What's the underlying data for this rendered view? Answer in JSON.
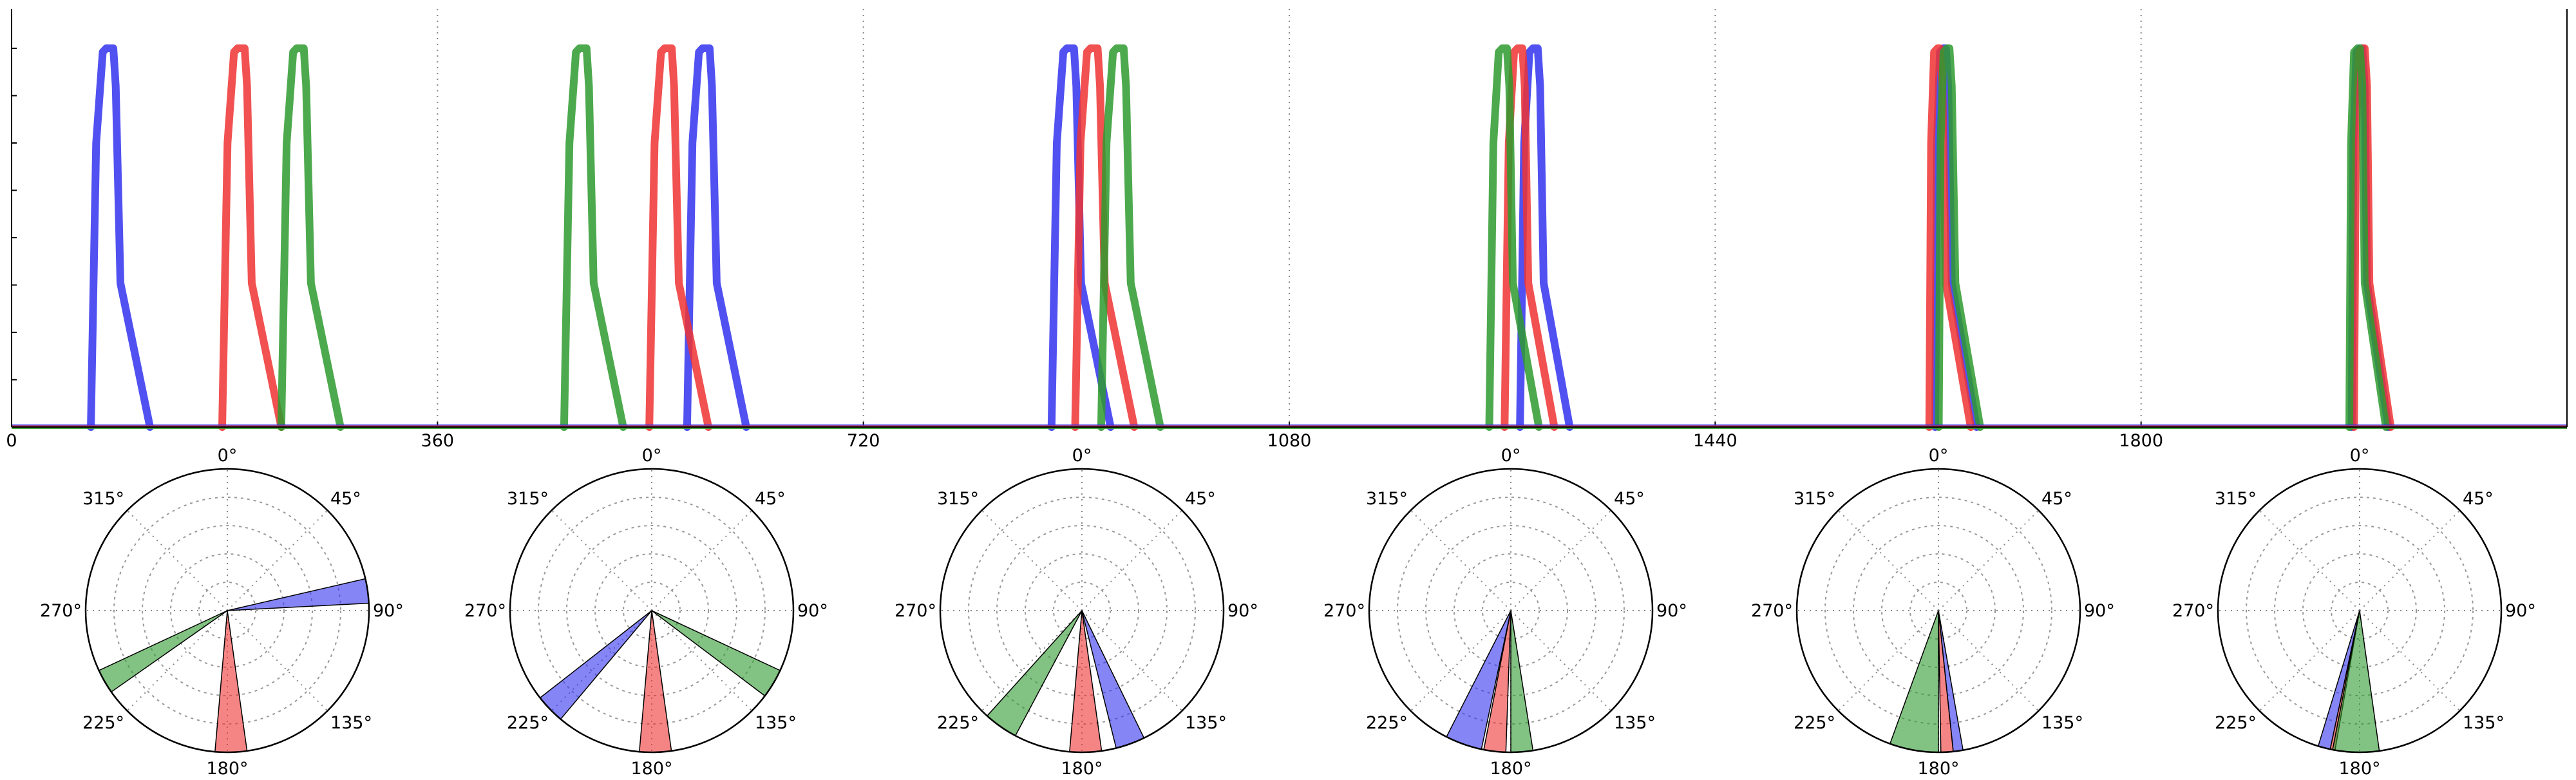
{
  "colors": {
    "blue": "#3333ee",
    "red": "#ee3333",
    "green": "#2e9a2e"
  },
  "chart_data": [
    {
      "type": "line",
      "title": "",
      "xlabel": "",
      "ylabel": "",
      "xlim": [
        0,
        2160
      ],
      "ylim": [
        0,
        1
      ],
      "x_tick_labels": [
        "0",
        "360",
        "720",
        "1080",
        "1440",
        "1800"
      ],
      "x_ticks": [
        0,
        360,
        720,
        1080,
        1440,
        1800
      ],
      "vertical_gridlines_at": [
        360,
        720,
        1080,
        1440,
        1800
      ],
      "y_ticks": [
        0.125,
        0.25,
        0.375,
        0.5,
        0.625,
        0.75,
        0.875,
        1.0
      ],
      "grid": "vertical dotted",
      "series": [
        {
          "color": "blue",
          "pulses": [
            {
              "start": 67,
              "rise_end": 80,
              "fall_start": 88,
              "knee_x": 92,
              "knee_y": 0.38,
              "end": 117
            },
            {
              "start": 571,
              "rise_end": 584,
              "fall_start": 592,
              "knee_x": 596,
              "knee_y": 0.38,
              "end": 621
            },
            {
              "start": 879,
              "rise_end": 892,
              "fall_start": 900,
              "knee_x": 904,
              "knee_y": 0.38,
              "end": 929
            },
            {
              "start": 1275,
              "rise_end": 1286,
              "fall_start": 1292,
              "knee_x": 1295,
              "knee_y": 0.38,
              "end": 1317
            },
            {
              "start": 1626,
              "rise_end": 1633,
              "fall_start": 1637,
              "knee_x": 1640,
              "knee_y": 0.38,
              "end": 1661
            },
            {
              "start": 1978,
              "rise_end": 1985,
              "fall_start": 1989,
              "knee_x": 1991,
              "knee_y": 0.38,
              "end": 2009
            }
          ]
        },
        {
          "color": "red",
          "pulses": [
            {
              "start": 178,
              "rise_end": 191,
              "fall_start": 199,
              "knee_x": 203,
              "knee_y": 0.38,
              "end": 228
            },
            {
              "start": 539,
              "rise_end": 552,
              "fall_start": 560,
              "knee_x": 564,
              "knee_y": 0.38,
              "end": 589
            },
            {
              "start": 899,
              "rise_end": 912,
              "fall_start": 920,
              "knee_x": 924,
              "knee_y": 0.38,
              "end": 949
            },
            {
              "start": 1262,
              "rise_end": 1273,
              "fall_start": 1279,
              "knee_x": 1282,
              "knee_y": 0.38,
              "end": 1304
            },
            {
              "start": 1621,
              "rise_end": 1628,
              "fall_start": 1632,
              "knee_x": 1635,
              "knee_y": 0.38,
              "end": 1656
            },
            {
              "start": 1980,
              "rise_end": 1987,
              "fall_start": 1991,
              "knee_x": 1993,
              "knee_y": 0.38,
              "end": 2011
            }
          ]
        },
        {
          "color": "green",
          "pulses": [
            {
              "start": 228,
              "rise_end": 241,
              "fall_start": 249,
              "knee_x": 253,
              "knee_y": 0.38,
              "end": 278
            },
            {
              "start": 467,
              "rise_end": 480,
              "fall_start": 488,
              "knee_x": 492,
              "knee_y": 0.38,
              "end": 517
            },
            {
              "start": 921,
              "rise_end": 934,
              "fall_start": 942,
              "knee_x": 946,
              "knee_y": 0.38,
              "end": 971
            },
            {
              "start": 1249,
              "rise_end": 1260,
              "fall_start": 1266,
              "knee_x": 1269,
              "knee_y": 0.38,
              "end": 1291
            },
            {
              "start": 1629,
              "rise_end": 1636,
              "fall_start": 1640,
              "knee_x": 1643,
              "knee_y": 0.38,
              "end": 1664
            },
            {
              "start": 1976,
              "rise_end": 1983,
              "fall_start": 1987,
              "knee_x": 1989,
              "knee_y": 0.38,
              "end": 2007
            }
          ]
        }
      ]
    },
    {
      "type": "polar",
      "title": "",
      "angle_labels": [
        "0°",
        "45°",
        "90°",
        "135°",
        "180°",
        "225°",
        "270°",
        "315°"
      ],
      "angle_label_degrees": [
        0,
        45,
        90,
        135,
        180,
        225,
        270,
        315
      ],
      "radial_gridlines": [
        0.2,
        0.4,
        0.6,
        0.8
      ],
      "theta_direction": "clockwise",
      "theta_zero": "top",
      "grid": "dotted",
      "panels": [
        {
          "wedges": [
            {
              "color": "blue",
              "from_deg": 77,
              "to_deg": 87
            },
            {
              "color": "red",
              "from_deg": 172,
              "to_deg": 185
            },
            {
              "color": "green",
              "from_deg": 235,
              "to_deg": 245
            }
          ]
        },
        {
          "wedges": [
            {
              "color": "green",
              "from_deg": 115,
              "to_deg": 127
            },
            {
              "color": "red",
              "from_deg": 172,
              "to_deg": 185
            },
            {
              "color": "blue",
              "from_deg": 220,
              "to_deg": 232
            }
          ]
        },
        {
          "wedges": [
            {
              "color": "blue",
              "from_deg": 154,
              "to_deg": 166
            },
            {
              "color": "red",
              "from_deg": 172,
              "to_deg": 185
            },
            {
              "color": "green",
              "from_deg": 208,
              "to_deg": 222
            }
          ]
        },
        {
          "wedges": [
            {
              "color": "green",
              "from_deg": 171,
              "to_deg": 180
            },
            {
              "color": "red",
              "from_deg": 182,
              "to_deg": 191
            },
            {
              "color": "blue",
              "from_deg": 192,
              "to_deg": 207
            }
          ]
        },
        {
          "wedges": [
            {
              "color": "blue",
              "from_deg": 170,
              "to_deg": 174
            },
            {
              "color": "red",
              "from_deg": 174,
              "to_deg": 179
            },
            {
              "color": "green",
              "from_deg": 180,
              "to_deg": 200
            }
          ]
        },
        {
          "wedges": [
            {
              "color": "blue",
              "from_deg": 192,
              "to_deg": 197
            },
            {
              "color": "red",
              "from_deg": 190,
              "to_deg": 192
            },
            {
              "color": "green",
              "from_deg": 172,
              "to_deg": 191
            }
          ]
        }
      ]
    }
  ]
}
